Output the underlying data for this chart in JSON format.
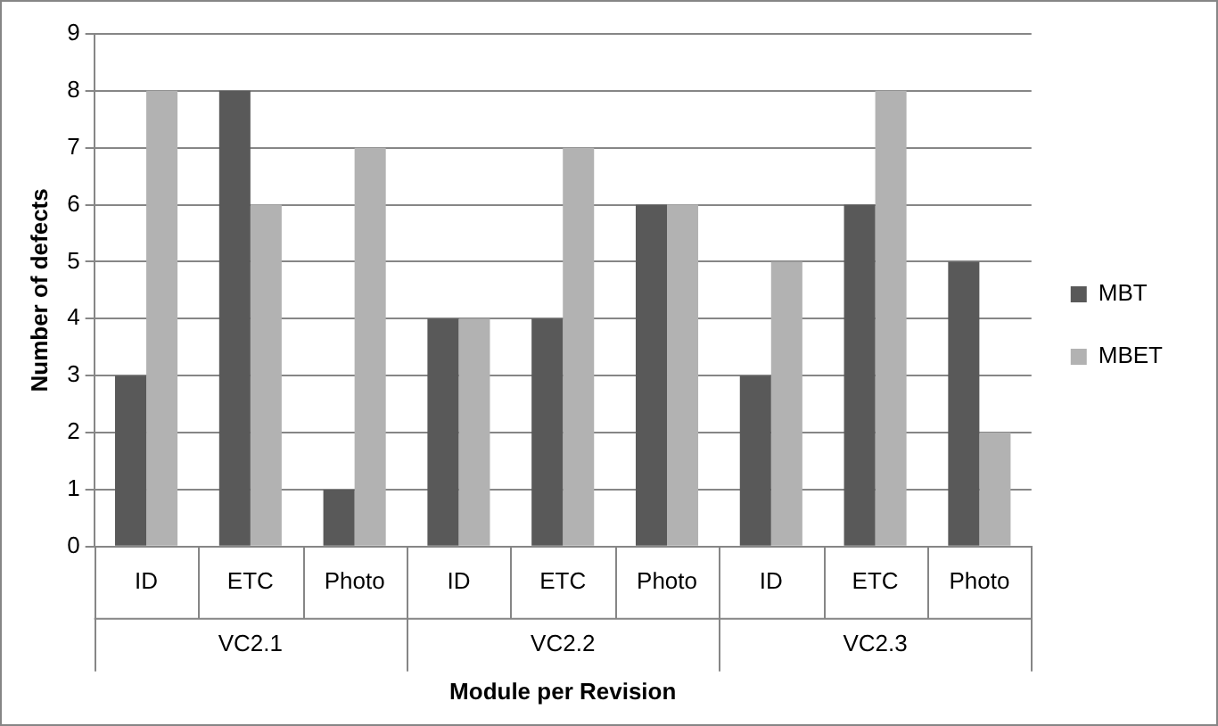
{
  "chart_data": {
    "type": "bar",
    "xlabel": "Module per Revision",
    "ylabel": "Number of defects",
    "categories": [
      "ID",
      "ETC",
      "Photo",
      "ID",
      "ETC",
      "Photo",
      "ID",
      "ETC",
      "Photo"
    ],
    "annotations": [
      "VC2.1",
      "VC2.2",
      "VC2.3"
    ],
    "series": [
      {
        "name": "MBT",
        "color": "#595959",
        "values": [
          3,
          8,
          1,
          4,
          4,
          6,
          3,
          6,
          5
        ]
      },
      {
        "name": "MBET",
        "color": "#b2b2b2",
        "values": [
          8,
          6,
          7,
          4,
          7,
          6,
          5,
          8,
          2
        ]
      }
    ],
    "ylim": [
      0,
      9
    ],
    "yticks": [
      0,
      1,
      2,
      3,
      4,
      5,
      6,
      7,
      8,
      9
    ],
    "grid": "y",
    "legend": "right"
  }
}
